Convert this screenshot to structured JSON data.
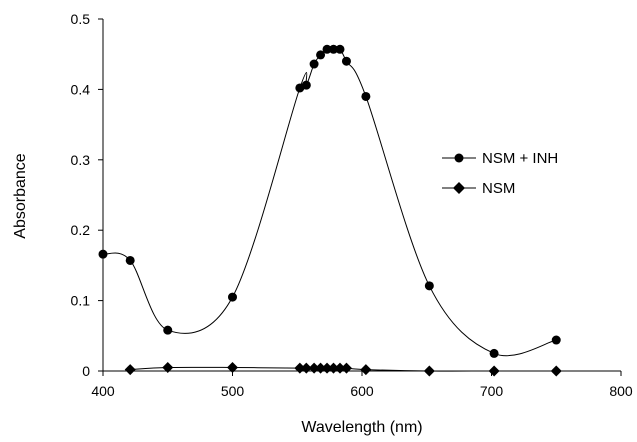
{
  "chart_data": {
    "type": "line",
    "title": "",
    "xlabel": "Wavelength (nm)",
    "ylabel": "Absorbance",
    "xlim": [
      400,
      800
    ],
    "ylim": [
      0,
      0.5
    ],
    "xticks": [
      "400",
      "500",
      "600",
      "700",
      "800"
    ],
    "yticks": [
      "0",
      "0.1",
      "0.2",
      "0.3",
      "0.4",
      "0.5"
    ],
    "grid": false,
    "legend_position": "right",
    "series": [
      {
        "name": "NSM + INH",
        "marker": "circle",
        "color": "#000000",
        "points": [
          {
            "x": 400,
            "y": 0.166
          },
          {
            "x": 421,
            "y": 0.157
          },
          {
            "x": 450,
            "y": 0.058
          },
          {
            "x": 500,
            "y": 0.105
          },
          {
            "x": 552,
            "y": 0.402
          },
          {
            "x": 557,
            "y": 0.406
          },
          {
            "x": 563,
            "y": 0.436
          },
          {
            "x": 568,
            "y": 0.449
          },
          {
            "x": 573,
            "y": 0.457
          },
          {
            "x": 578,
            "y": 0.457
          },
          {
            "x": 583,
            "y": 0.457
          },
          {
            "x": 588,
            "y": 0.44
          },
          {
            "x": 603,
            "y": 0.39
          },
          {
            "x": 652,
            "y": 0.121
          },
          {
            "x": 702,
            "y": 0.025
          },
          {
            "x": 750,
            "y": 0.044
          }
        ]
      },
      {
        "name": "NSM",
        "marker": "diamond",
        "color": "#000000",
        "points": [
          {
            "x": 421,
            "y": 0.002
          },
          {
            "x": 450,
            "y": 0.005
          },
          {
            "x": 500,
            "y": 0.005
          },
          {
            "x": 552,
            "y": 0.004
          },
          {
            "x": 557,
            "y": 0.004
          },
          {
            "x": 563,
            "y": 0.004
          },
          {
            "x": 568,
            "y": 0.004
          },
          {
            "x": 573,
            "y": 0.004
          },
          {
            "x": 578,
            "y": 0.004
          },
          {
            "x": 583,
            "y": 0.004
          },
          {
            "x": 588,
            "y": 0.004
          },
          {
            "x": 603,
            "y": 0.002
          },
          {
            "x": 652,
            "y": 0.0
          },
          {
            "x": 702,
            "y": 0.0
          },
          {
            "x": 750,
            "y": 0.0
          }
        ]
      }
    ]
  }
}
